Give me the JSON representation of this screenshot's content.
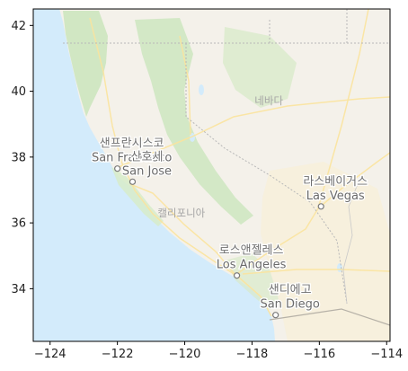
{
  "map": {
    "type": "basemap",
    "provider_style": "Google Maps (Korean labels)",
    "extent": {
      "lon": [
        -124.5,
        -113.9
      ],
      "lat": [
        32.4,
        42.5
      ]
    },
    "x_ticks": [
      -124,
      -122,
      -120,
      -118,
      -116,
      -114
    ],
    "y_ticks": [
      34,
      36,
      38,
      40,
      42
    ],
    "x_tick_labels": [
      "−124",
      "−122",
      "−120",
      "−118",
      "−116",
      "−114"
    ],
    "y_tick_labels": [
      "34",
      "36",
      "38",
      "40",
      "42"
    ],
    "colors": {
      "ocean": "#d3ebfb",
      "land": "#f4f1ea",
      "vegetation": "#cde6bf",
      "desert": "#f7f0dc",
      "road": "#fbe49e",
      "border": "#b8b8b8",
      "city_marker_fill": "#ffffff",
      "city_marker_stroke": "#7a7a7a"
    },
    "cities": [
      {
        "name_ko": "샌프란시스코",
        "name_en": "San Francisco",
        "lon": -122.0,
        "lat": 37.65
      },
      {
        "name_ko": "산호세",
        "name_en": "San Jose",
        "lon": -121.55,
        "lat": 37.25
      },
      {
        "name_ko": "라스베이거스",
        "name_en": "Las Vegas",
        "lon": -115.95,
        "lat": 36.5
      },
      {
        "name_ko": "로스앤젤레스",
        "name_en": "Los Angeles",
        "lon": -118.45,
        "lat": 34.4
      },
      {
        "name_ko": "샌디에고",
        "name_en": "San Diego",
        "lon": -117.3,
        "lat": 33.2
      }
    ],
    "regions": [
      {
        "name": "네바다",
        "lon": -117.5,
        "lat": 39.6
      },
      {
        "name": "캘리포니아",
        "lon": -120.1,
        "lat": 36.2
      }
    ]
  }
}
